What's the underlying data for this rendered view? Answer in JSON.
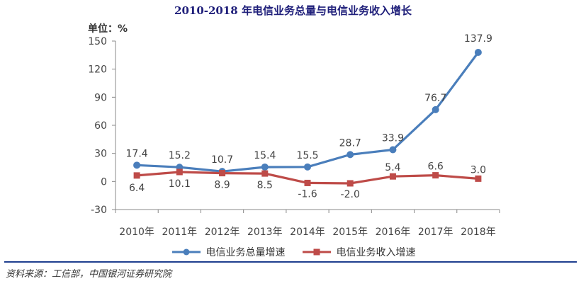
{
  "title": "2010-2018 年电信业务总量与电信业务收入增长",
  "unit_label": "单位：%",
  "source": "资料来源：工信部，中国银河证券研究院",
  "colors": {
    "series1": "#4a7ebb",
    "series2": "#be4b48"
  },
  "chart_data": {
    "type": "line",
    "x": [
      "2010年",
      "2011年",
      "2012年",
      "2013年",
      "2014年",
      "2015年",
      "2016年",
      "2017年",
      "2018年"
    ],
    "ylim": [
      -30,
      150
    ],
    "yticks": [
      "150",
      "120",
      "90",
      "60",
      "30",
      "0",
      "-30"
    ],
    "series": [
      {
        "name": "电信业务总量增速",
        "values": [
          17.4,
          15.2,
          10.7,
          15.4,
          15.5,
          28.7,
          33.9,
          76.7,
          137.9
        ],
        "labels": [
          "17.4",
          "15.2",
          "10.7",
          "15.4",
          "15.5",
          "28.7",
          "33.9",
          "76.7",
          "137.9"
        ]
      },
      {
        "name": "电信业务收入增速",
        "values": [
          6.4,
          10.1,
          8.9,
          8.5,
          -1.6,
          -2.0,
          5.4,
          6.6,
          3.0
        ],
        "labels": [
          "6.4",
          "10.1",
          "8.9",
          "8.5",
          "-1.6",
          "-2.0",
          "5.4",
          "6.6",
          "3.0"
        ]
      }
    ],
    "legend_position": "bottom"
  }
}
